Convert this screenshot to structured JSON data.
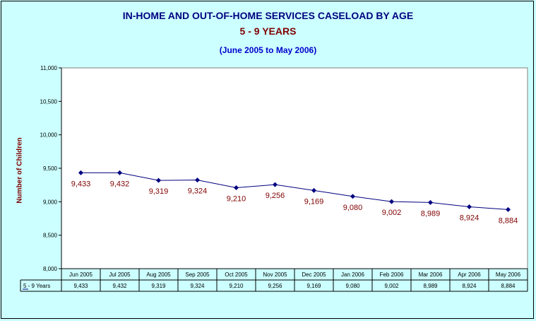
{
  "chart_data": {
    "type": "line",
    "title": "IN-HOME AND OUT-OF-HOME SERVICES CASELOAD BY AGE",
    "subtitle": "5 - 9 YEARS",
    "subtitle2": "(June 2005 to May 2006)",
    "ylabel": "Number of Children",
    "xlabel": "",
    "ylim": [
      8000,
      11000
    ],
    "y_ticks": [
      8000,
      8500,
      9000,
      9500,
      10000,
      10500,
      11000
    ],
    "y_tick_labels": [
      "8,000",
      "8,500",
      "9,000",
      "9,500",
      "10,000",
      "10,500",
      "11,000"
    ],
    "grid": false,
    "categories": [
      "Jun 2005",
      "Jul 2005",
      "Aug 2005",
      "Sep 2005",
      "Oct 2005",
      "Nov 2005",
      "Dec 2005",
      "Jan 2006",
      "Feb 2006",
      "Mar 2006",
      "Apr 2006",
      "May 2006"
    ],
    "series": [
      {
        "name": "5 - 9 Years",
        "values": [
          9433,
          9432,
          9319,
          9324,
          9210,
          9256,
          9169,
          9080,
          9002,
          8989,
          8924,
          8884
        ],
        "labels": [
          "9,433",
          "9,432",
          "9,319",
          "9,324",
          "9,210",
          "9,256",
          "9,169",
          "9,080",
          "9,002",
          "8,989",
          "8,924",
          "8,884"
        ]
      }
    ],
    "data_table": true
  },
  "colors": {
    "background": "#ccffff",
    "plot_area": "#ffffff",
    "line": "#000080",
    "data_label": "#800000",
    "title": "#000080",
    "subtitle": "#800000",
    "date_range": "#0000cc"
  }
}
